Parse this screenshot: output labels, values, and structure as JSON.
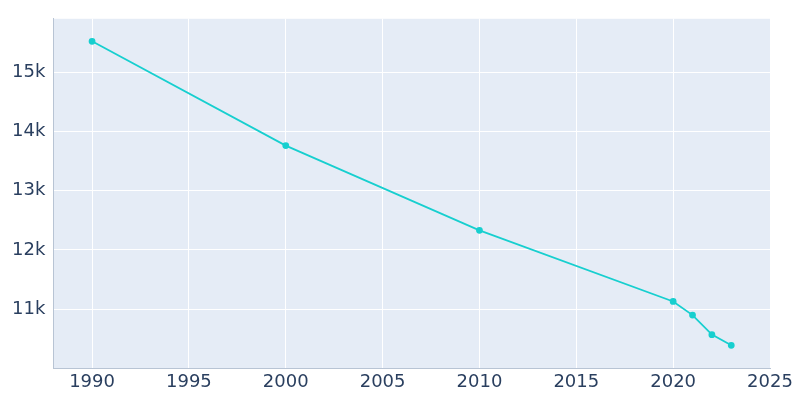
{
  "chart_data": {
    "type": "line",
    "x": [
      1990,
      2000,
      2010,
      2020,
      2021,
      2022,
      2023
    ],
    "values": [
      15520,
      13760,
      12330,
      11130,
      10900,
      10570,
      10390
    ],
    "color": "#17cfcf",
    "marker": "circle",
    "xlim": [
      1988,
      2025
    ],
    "xticks": [
      1990,
      1995,
      2000,
      2005,
      2010,
      2015,
      2020,
      2025
    ],
    "ylim": [
      10000,
      15900
    ],
    "yticks": [
      {
        "value": 11000,
        "label": "11k"
      },
      {
        "value": 12000,
        "label": "12k"
      },
      {
        "value": 13000,
        "label": "13k"
      },
      {
        "value": 14000,
        "label": "14k"
      },
      {
        "value": 15000,
        "label": "15k"
      }
    ],
    "grid": true
  }
}
